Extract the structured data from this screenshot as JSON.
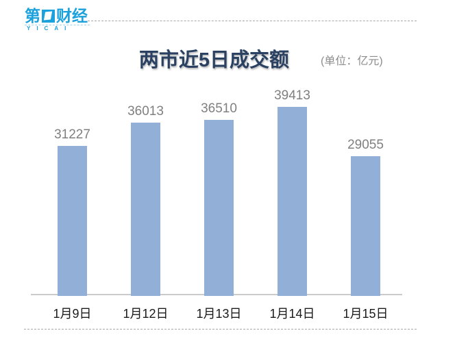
{
  "logo": {
    "brand": "第一财经",
    "char_before_box": "第",
    "chars_after_box": "财经",
    "subtext": "YICAI",
    "brand_color": "#1BA1DC"
  },
  "chart_data": {
    "type": "bar",
    "title": "两市近5日成交额",
    "unit": "(单位：亿元)",
    "categories": [
      "1月9日",
      "1月12日",
      "1月13日",
      "1月14日",
      "1月15日"
    ],
    "values": [
      31227,
      36013,
      36510,
      39413,
      29055
    ],
    "ylim": [
      0,
      40000
    ],
    "grid": false,
    "legend": false,
    "bar_color": "#92AFD7",
    "value_label_color": "#7F7F7F",
    "title_color": "#2B4162",
    "axis_line_color": "#CACACA"
  }
}
